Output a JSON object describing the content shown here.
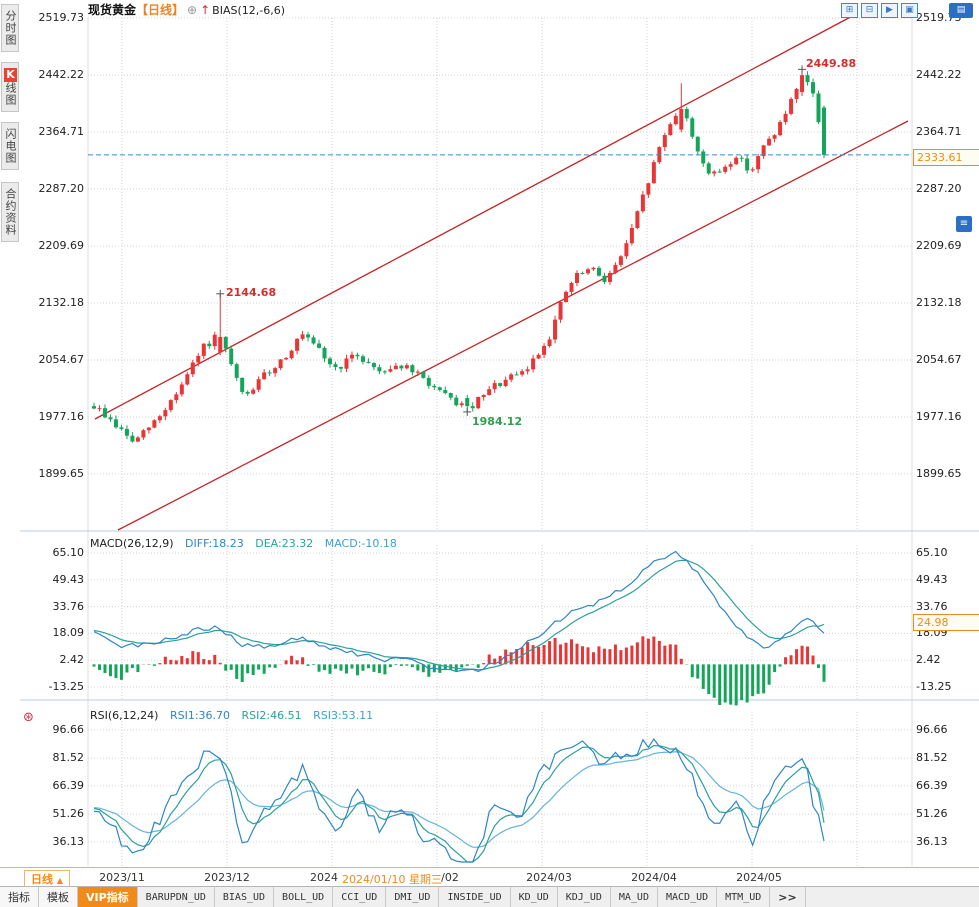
{
  "header": {
    "symbol": "现货黄金",
    "period_tag": "【日线】",
    "plus_icon": "⊕",
    "arrow_icon": "↑",
    "indicator": "BIAS(12,-6,6)"
  },
  "sidebar": {
    "tabs": [
      {
        "label": "分时图"
      },
      {
        "label": "K线图",
        "badge": "K",
        "rest": "线图",
        "active": true
      },
      {
        "label": "闪电图"
      },
      {
        "label": "合约资料"
      }
    ]
  },
  "top_icons": {
    "icons": [
      "⊞",
      "⊟",
      "▶",
      "▣"
    ],
    "corner": "▤",
    "side": "≡"
  },
  "price_axis": [
    "2519.73",
    "2442.22",
    "2364.71",
    "2287.20",
    "2209.69",
    "2132.18",
    "2054.67",
    "1977.16",
    "1899.65"
  ],
  "current_price": {
    "label": "2333.61"
  },
  "annotations": [
    {
      "text": "2144.68"
    },
    {
      "text": "2449.88"
    },
    {
      "text": "1984.12"
    }
  ],
  "macd_panel": {
    "title": "MACD(26,12,9)",
    "diff": "DIFF:18.23",
    "dea": "DEA:23.32",
    "macd": "MACD:-10.18",
    "axis": [
      "65.10",
      "49.43",
      "33.76",
      "18.09",
      "2.42",
      "-13.25"
    ],
    "current": "24.98"
  },
  "rsi_panel": {
    "title": "RSI(6,12,24)",
    "rsi1": "RSI1:36.70",
    "rsi2": "RSI2:46.51",
    "rsi3": "RSI3:53.11",
    "axis": [
      "96.66",
      "81.52",
      "66.39",
      "51.26",
      "36.13"
    ],
    "icon": "⊛"
  },
  "xaxis": {
    "period": "日线",
    "period_arrow": "▲",
    "labels": [
      "2023/11",
      "2023/12",
      "2024",
      "/02",
      "2024/03",
      "2024/04",
      "2024/05"
    ],
    "highlight": "2024/01/10 星期三"
  },
  "bottom_bar": {
    "tabs": [
      "指标",
      "模板"
    ],
    "vip": "VIP指标",
    "indicators": [
      "BARUPDN_UD",
      "BIAS_UD",
      "BOLL_UD",
      "CCI_UD",
      "DMI_UD",
      "INSIDE_UD",
      "KD_UD",
      "KDJ_UD",
      "MA_UD",
      "MACD_UD",
      "MTM_UD"
    ],
    "more": ">>"
  },
  "colors": {
    "up": "#e83535",
    "down": "#14a45a",
    "trend_line": "#c32222",
    "dashed_line": "#2e8fd6",
    "orange": "#f08a18",
    "blue": "#2d86c8",
    "teal": "#2aa198",
    "light_blue": "#64b5dc",
    "grid": "#d2d2d2"
  },
  "chart_data": {
    "type": "candlestick",
    "symbol": "现货黄金",
    "period": "日线",
    "price_axis_ticks": [
      2519.73,
      2442.22,
      2364.71,
      2287.2,
      2209.69,
      2132.18,
      2054.67,
      1977.16,
      1899.65
    ],
    "current_price": 2333.61,
    "candle_count": 134,
    "months": [
      "2023/11",
      "2023/12",
      "2024/01",
      "2024/02",
      "2024/03",
      "2024/04",
      "2024/05"
    ],
    "crosshair_date": "2024/01/10 星期三",
    "key_values": {
      "dec_high": 2144.68,
      "feb_low": 1984.12,
      "apr_high": 2431.0,
      "may_high": 2449.88,
      "last_close": 2333.61
    },
    "trend_anchors": [
      [
        0,
        1992
      ],
      [
        0.02,
        1975
      ],
      [
        0.055,
        1942
      ],
      [
        0.09,
        1978
      ],
      [
        0.12,
        2020
      ],
      [
        0.15,
        2072
      ],
      [
        0.171,
        2088
      ],
      [
        0.19,
        2042
      ],
      [
        0.205,
        2002
      ],
      [
        0.23,
        2030
      ],
      [
        0.26,
        2058
      ],
      [
        0.285,
        2088
      ],
      [
        0.31,
        2065
      ],
      [
        0.33,
        2042
      ],
      [
        0.36,
        2062
      ],
      [
        0.39,
        2040
      ],
      [
        0.42,
        2048
      ],
      [
        0.45,
        2030
      ],
      [
        0.48,
        2005
      ],
      [
        0.514,
        1988
      ],
      [
        0.55,
        2020
      ],
      [
        0.59,
        2038
      ],
      [
        0.623,
        2085
      ],
      [
        0.645,
        2145
      ],
      [
        0.66,
        2168
      ],
      [
        0.68,
        2178
      ],
      [
        0.7,
        2165
      ],
      [
        0.715,
        2182
      ],
      [
        0.735,
        2225
      ],
      [
        0.755,
        2285
      ],
      [
        0.775,
        2345
      ],
      [
        0.795,
        2390
      ],
      [
        0.81,
        2385
      ],
      [
        0.825,
        2345
      ],
      [
        0.845,
        2302
      ],
      [
        0.865,
        2318
      ],
      [
        0.88,
        2332
      ],
      [
        0.9,
        2312
      ],
      [
        0.92,
        2348
      ],
      [
        0.94,
        2375
      ],
      [
        0.955,
        2405
      ],
      [
        0.973,
        2438
      ],
      [
        0.985,
        2418
      ],
      [
        1,
        2340
      ]
    ],
    "specials": [
      {
        "f": 0.171,
        "open": 2065,
        "close": 2086,
        "high": 2144.68
      },
      {
        "f": 0.514,
        "open": 2003,
        "close": 1992,
        "low": 1984.12
      },
      {
        "f": 0.801,
        "open": 2368,
        "close": 2396,
        "high": 2431.0
      },
      {
        "f": 0.973,
        "open": 2419,
        "close": 2442,
        "high": 2449.88
      },
      {
        "f": 1,
        "open": 2398,
        "close": 2333.61,
        "high": 2401,
        "low": 2329
      }
    ],
    "macd": {
      "params": "26,12,9",
      "diff": 18.23,
      "dea": 23.32,
      "macd": -10.18,
      "latest": 24.98,
      "axis_ticks": [
        65.1,
        49.43,
        33.76,
        18.09,
        2.42,
        -13.25
      ],
      "diff_anchors": [
        [
          0,
          20
        ],
        [
          0.04,
          10
        ],
        [
          0.09,
          13
        ],
        [
          0.14,
          20
        ],
        [
          0.171,
          22
        ],
        [
          0.2,
          12
        ],
        [
          0.24,
          10
        ],
        [
          0.285,
          16
        ],
        [
          0.32,
          10
        ],
        [
          0.36,
          6
        ],
        [
          0.4,
          2
        ],
        [
          0.43,
          4
        ],
        [
          0.46,
          -2
        ],
        [
          0.5,
          -5
        ],
        [
          0.53,
          -3
        ],
        [
          0.57,
          6
        ],
        [
          0.6,
          14
        ],
        [
          0.63,
          24
        ],
        [
          0.66,
          32
        ],
        [
          0.7,
          38
        ],
        [
          0.735,
          48
        ],
        [
          0.77,
          60
        ],
        [
          0.8,
          65
        ],
        [
          0.83,
          52
        ],
        [
          0.86,
          33
        ],
        [
          0.89,
          18
        ],
        [
          0.92,
          10
        ],
        [
          0.94,
          14
        ],
        [
          0.96,
          22
        ],
        [
          0.975,
          28
        ],
        [
          0.99,
          22
        ],
        [
          1,
          18.23
        ]
      ]
    },
    "rsi": {
      "params": "6,12,24",
      "rsi1": 36.7,
      "rsi2": 46.51,
      "rsi3": 53.11,
      "axis_ticks": [
        96.66,
        81.52,
        66.39,
        51.26,
        36.13
      ],
      "rsi1_anchors": [
        [
          0,
          55
        ],
        [
          0.03,
          42
        ],
        [
          0.055,
          26
        ],
        [
          0.09,
          48
        ],
        [
          0.12,
          68
        ],
        [
          0.15,
          82
        ],
        [
          0.171,
          86
        ],
        [
          0.19,
          58
        ],
        [
          0.205,
          34
        ],
        [
          0.23,
          52
        ],
        [
          0.26,
          64
        ],
        [
          0.285,
          76
        ],
        [
          0.31,
          52
        ],
        [
          0.33,
          40
        ],
        [
          0.36,
          62
        ],
        [
          0.39,
          44
        ],
        [
          0.42,
          56
        ],
        [
          0.45,
          40
        ],
        [
          0.48,
          30
        ],
        [
          0.514,
          22
        ],
        [
          0.55,
          58
        ],
        [
          0.58,
          48
        ],
        [
          0.61,
          72
        ],
        [
          0.645,
          88
        ],
        [
          0.67,
          92
        ],
        [
          0.695,
          76
        ],
        [
          0.715,
          82
        ],
        [
          0.74,
          86
        ],
        [
          0.765,
          90
        ],
        [
          0.79,
          87
        ],
        [
          0.81,
          80
        ],
        [
          0.83,
          62
        ],
        [
          0.845,
          45
        ],
        [
          0.865,
          52
        ],
        [
          0.88,
          58
        ],
        [
          0.9,
          34
        ],
        [
          0.92,
          60
        ],
        [
          0.94,
          70
        ],
        [
          0.955,
          78
        ],
        [
          0.973,
          84
        ],
        [
          0.985,
          58
        ],
        [
          1,
          36.7
        ]
      ]
    }
  }
}
